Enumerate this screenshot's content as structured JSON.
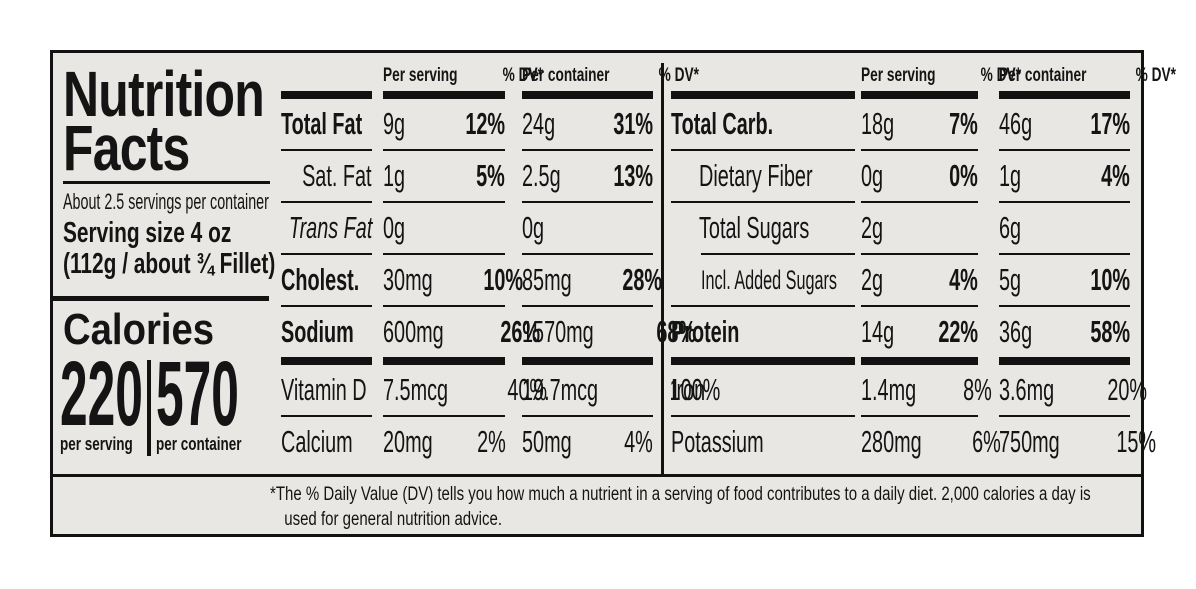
{
  "colors": {
    "page_bg": "#ffffff",
    "label_bg": "#e9e7e4",
    "ink": "#141414"
  },
  "label": {
    "title_line1": "Nutrition",
    "title_line2": "Facts",
    "servings_per_container": "About 2.5 servings per container",
    "serving_size": "Serving size 4 oz",
    "serving_size_detail": "(112g / about ¾ Fillet)",
    "calories": {
      "word": "Calories",
      "per_serving_value": "220",
      "per_container_value": "570",
      "per_serving_label": "per serving",
      "per_container_label": "per container"
    },
    "column_headers": {
      "per_serving": "Per serving",
      "per_container": "Per container",
      "dv": "% DV*"
    },
    "left_table": {
      "rows": [
        {
          "name": "Total Fat",
          "per_serving_amount": "9g",
          "per_serving_dv": "12%",
          "per_container_amount": "24g",
          "per_container_dv": "31%"
        },
        {
          "name": "Sat. Fat",
          "per_serving_amount": "1g",
          "per_serving_dv": "5%",
          "per_container_amount": "2.5g",
          "per_container_dv": "13%"
        },
        {
          "name": "Trans Fat",
          "per_serving_amount": "0g",
          "per_serving_dv": "",
          "per_container_amount": "0g",
          "per_container_dv": ""
        },
        {
          "name": "Cholest.",
          "per_serving_amount": "30mg",
          "per_serving_dv": "10%",
          "per_container_amount": "85mg",
          "per_container_dv": "28%"
        },
        {
          "name": "Sodium",
          "per_serving_amount": "600mg",
          "per_serving_dv": "26%",
          "per_container_amount": "1570mg",
          "per_container_dv": "68%"
        },
        {
          "name": "Vitamin D",
          "per_serving_amount": "7.5mcg",
          "per_serving_dv": "40%",
          "per_container_amount": "19.7mcg",
          "per_container_dv": "100%"
        },
        {
          "name": "Calcium",
          "per_serving_amount": "20mg",
          "per_serving_dv": "2%",
          "per_container_amount": "50mg",
          "per_container_dv": "4%"
        }
      ]
    },
    "right_table": {
      "rows": [
        {
          "name": "Total Carb.",
          "per_serving_amount": "18g",
          "per_serving_dv": "7%",
          "per_container_amount": "46g",
          "per_container_dv": "17%"
        },
        {
          "name": "Dietary Fiber",
          "per_serving_amount": "0g",
          "per_serving_dv": "0%",
          "per_container_amount": "1g",
          "per_container_dv": "4%"
        },
        {
          "name": "Total Sugars",
          "per_serving_amount": "2g",
          "per_serving_dv": "",
          "per_container_amount": "6g",
          "per_container_dv": ""
        },
        {
          "name": "Incl. Added Sugars",
          "per_serving_amount": "2g",
          "per_serving_dv": "4%",
          "per_container_amount": "5g",
          "per_container_dv": "10%"
        },
        {
          "name": "Protein",
          "per_serving_amount": "14g",
          "per_serving_dv": "22%",
          "per_container_amount": "36g",
          "per_container_dv": "58%"
        },
        {
          "name": "Iron",
          "per_serving_amount": "1.4mg",
          "per_serving_dv": "8%",
          "per_container_amount": "3.6mg",
          "per_container_dv": "20%"
        },
        {
          "name": "Potassium",
          "per_serving_amount": "280mg",
          "per_serving_dv": "6%",
          "per_container_amount": "750mg",
          "per_container_dv": "15%"
        }
      ]
    },
    "footnote_line1": "*The % Daily Value (DV) tells you how much a nutrient in a serving of food contributes to a daily diet. 2,000 calories a day is",
    "footnote_line2": "used for general nutrition advice."
  }
}
